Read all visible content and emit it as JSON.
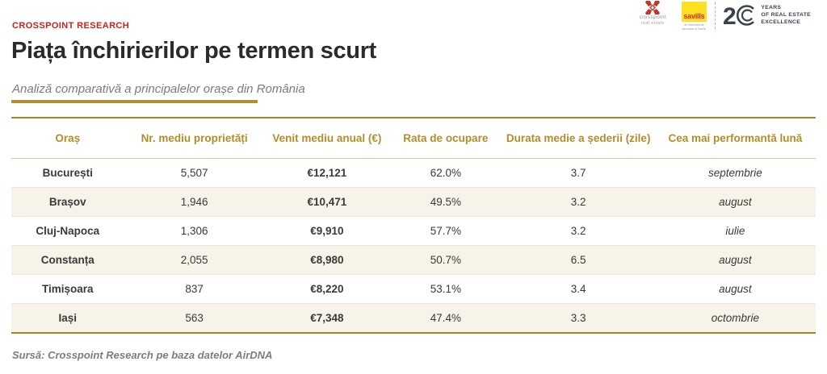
{
  "header": {
    "eyebrow": "CROSSPOINT RESEARCH",
    "title": "Piața închirierilor pe termen scurt",
    "subtitle": "Analiză comparativă a principalelor orașe din România"
  },
  "logos": {
    "crosspoint_name": "crosspoint",
    "crosspoint_sub": "real estate",
    "savills": "savills",
    "savills_sub": "an international associate of Savills",
    "years_numeral": "2",
    "years_line1": "YEARS",
    "years_line2": "OF REAL ESTATE",
    "years_line3": "EXCELLENCE"
  },
  "table": {
    "columns": [
      "Oraș",
      "Nr. mediu proprietăți",
      "Venit mediu anual (€)",
      "Rata de ocupare",
      "Durata medie a șederii (zile)",
      "Cea mai performantă lună"
    ],
    "rows": [
      [
        "București",
        "5,507",
        "€12,121",
        "62.0%",
        "3.7",
        "septembrie"
      ],
      [
        "Brașov",
        "1,946",
        "€10,471",
        "49.5%",
        "3.2",
        "august"
      ],
      [
        "Cluj-Napoca",
        "1,306",
        "€9,910",
        "57.7%",
        "3.2",
        "iulie"
      ],
      [
        "Constanța",
        "2,055",
        "€8,980",
        "50.7%",
        "6.5",
        "august"
      ],
      [
        "Timișoara",
        "837",
        "€8,220",
        "53.1%",
        "3.4",
        "august"
      ],
      [
        "Iași",
        "563",
        "€7,348",
        "47.4%",
        "3.3",
        "octombrie"
      ]
    ]
  },
  "chart_data": {
    "type": "table",
    "title": "Piața închirierilor pe termen scurt",
    "columns": [
      "Oraș",
      "Nr. mediu proprietăți",
      "Venit mediu anual (€)",
      "Rata de ocupare",
      "Durata medie a șederii (zile)",
      "Cea mai performantă lună"
    ],
    "rows": [
      [
        "București",
        5507,
        12121,
        "62.0%",
        3.7,
        "septembrie"
      ],
      [
        "Brașov",
        1946,
        10471,
        "49.5%",
        3.2,
        "august"
      ],
      [
        "Cluj-Napoca",
        1306,
        9910,
        "57.7%",
        3.2,
        "iulie"
      ],
      [
        "Constanța",
        2055,
        8980,
        "50.7%",
        6.5,
        "august"
      ],
      [
        "Timișoara",
        837,
        8220,
        "53.1%",
        3.4,
        "august"
      ],
      [
        "Iași",
        563,
        7348,
        "47.4%",
        3.3,
        "octombrie"
      ]
    ]
  },
  "footer": {
    "source": "Sursă: Crosspoint Research pe baza datelor AirDNA"
  },
  "colors": {
    "accent_gold": "#B08D2E",
    "brand_red": "#C8241C",
    "row_alt_bg": "#F7F3E8",
    "navy": "#3A434C",
    "savills_yellow": "#FBE122",
    "savills_red": "#D02B28"
  }
}
